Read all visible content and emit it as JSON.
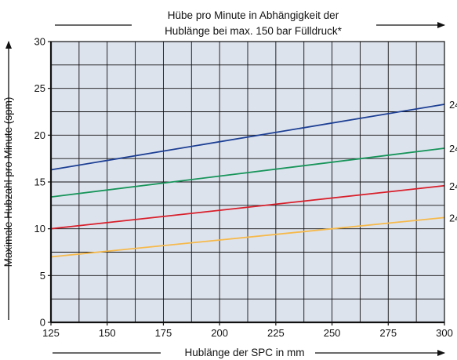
{
  "chart_data": {
    "type": "line",
    "title_line1": "Hübe pro Minute in Abhängigkeit der",
    "title_line2": "Hublänge bei max. 150 bar Fülldruck*",
    "xlabel": "Hublänge der SPC in mm",
    "ylabel": "Maximale Hubzahl pro Minute (spm)",
    "xlim": [
      125,
      300
    ],
    "ylim": [
      0,
      30
    ],
    "x_ticks": [
      125,
      150,
      175,
      200,
      225,
      250,
      275,
      300
    ],
    "y_ticks": [
      0,
      5,
      10,
      15,
      20,
      25,
      30
    ],
    "grid": true,
    "x_minor_step": 12.5,
    "y_minor_step": 2.5,
    "background_color": "#dde3ed",
    "grid_color": "#111111",
    "series": [
      {
        "name": "24",
        "color": "#1c3f94",
        "x": [
          125,
          300
        ],
        "y": [
          16.3,
          23.3
        ]
      },
      {
        "name": "24",
        "color": "#17955a",
        "x": [
          125,
          300
        ],
        "y": [
          13.4,
          18.6
        ]
      },
      {
        "name": "24",
        "color": "#d81f2a",
        "x": [
          125,
          300
        ],
        "y": [
          10.0,
          14.6
        ]
      },
      {
        "name": "24",
        "color": "#f6b94a",
        "x": [
          125,
          300
        ],
        "y": [
          7.0,
          11.2
        ]
      }
    ]
  }
}
